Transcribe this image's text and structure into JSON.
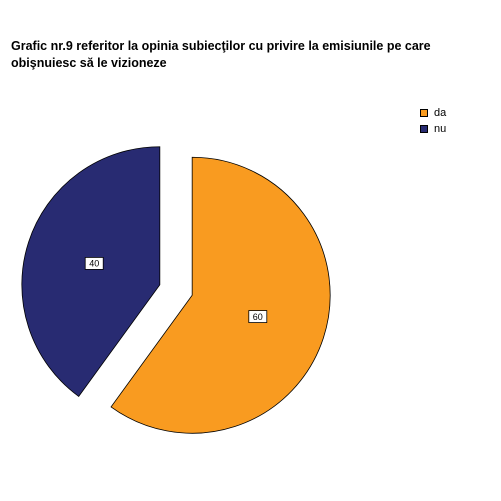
{
  "chart_data": {
    "type": "pie",
    "title_lines": [
      "Grafic nr.9 referitor la opinia subiecţilor cu privire la emisiunile pe care",
      "obişnuiesc să le vizioneze"
    ],
    "categories": [
      "da",
      "nu"
    ],
    "values": [
      60,
      40
    ],
    "data_labels": [
      "60",
      "40"
    ],
    "colors": [
      "#F99B20",
      "#282B72"
    ],
    "exploded": true,
    "start_angle_deg": 0,
    "direction": "clockwise",
    "legend": {
      "position": "top-right",
      "entries": [
        "da",
        "nu"
      ]
    }
  }
}
